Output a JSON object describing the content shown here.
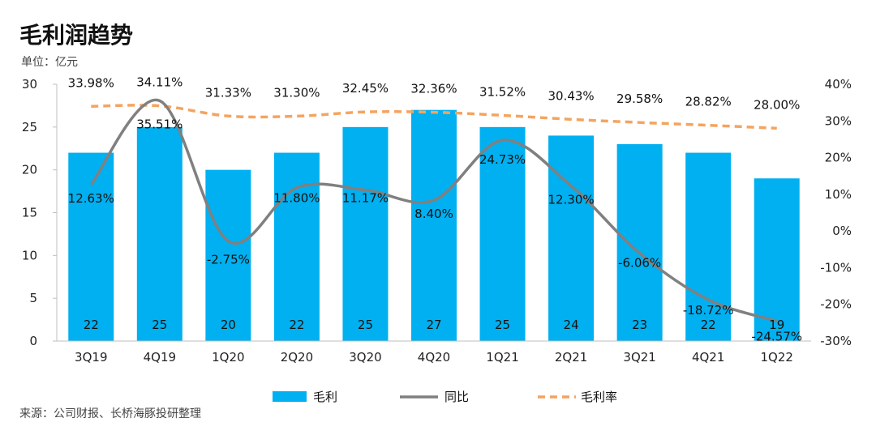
{
  "header": {
    "title": "毛利润趋势",
    "unit": "单位：亿元"
  },
  "footer": {
    "source": "来源：公司财报、长桥海豚投研整理"
  },
  "chart_data": {
    "type": "bar",
    "categories": [
      "3Q19",
      "4Q19",
      "1Q20",
      "2Q20",
      "3Q20",
      "4Q20",
      "1Q21",
      "2Q21",
      "3Q21",
      "4Q21",
      "1Q22"
    ],
    "series": [
      {
        "name": "毛利",
        "type": "bar",
        "axis": "left",
        "color": "#00b0f0",
        "values": [
          22,
          25,
          20,
          22,
          25,
          27,
          25,
          24,
          23,
          22,
          19
        ],
        "labels": [
          "22",
          "25",
          "20",
          "22",
          "25",
          "27",
          "25",
          "24",
          "23",
          "22",
          "19"
        ]
      },
      {
        "name": "同比",
        "type": "line",
        "axis": "right",
        "color": "#808080",
        "values": [
          12.63,
          35.51,
          -2.75,
          11.8,
          11.17,
          8.4,
          24.73,
          12.3,
          -6.06,
          -18.72,
          -24.57
        ],
        "labels": [
          "12.63%",
          "35.51%",
          "-2.75%",
          "11.80%",
          "11.17%",
          "8.40%",
          "24.73%",
          "12.30%",
          "-6.06%",
          "-18.72%",
          "-24.57%"
        ]
      },
      {
        "name": "毛利率",
        "type": "line-dashed",
        "axis": "right",
        "color": "#f4a460",
        "values": [
          33.98,
          34.11,
          31.33,
          31.3,
          32.45,
          32.36,
          31.52,
          30.43,
          29.58,
          28.82,
          28.0
        ],
        "labels": [
          "33.98%",
          "34.11%",
          "31.33%",
          "31.30%",
          "32.45%",
          "32.36%",
          "31.52%",
          "30.43%",
          "29.58%",
          "28.82%",
          "28.00%"
        ]
      }
    ],
    "y_left": {
      "min": 0,
      "max": 30,
      "ticks": [
        "0",
        "5",
        "10",
        "15",
        "20",
        "25",
        "30"
      ]
    },
    "y_right": {
      "min": -30,
      "max": 40,
      "ticks": [
        "-30%",
        "-20%",
        "-10%",
        "0%",
        "10%",
        "20%",
        "30%",
        "40%"
      ]
    },
    "legend_position": "bottom",
    "grid": false
  }
}
